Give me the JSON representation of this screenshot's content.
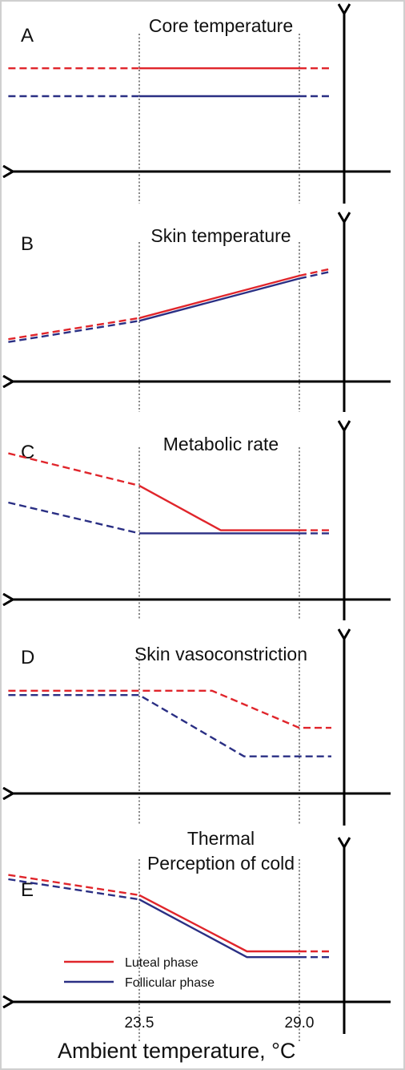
{
  "chart_data": {
    "type": "line",
    "xlabel": "Ambient temperature, °C",
    "x_ticks": [
      23.5,
      29.0
    ],
    "colors": {
      "luteal": "#e0252b",
      "follicular": "#2a2f84"
    },
    "legend": {
      "placement": "bottom-left",
      "items": [
        "Luteal phase",
        "Follicular phase"
      ]
    },
    "note": "Relative (unitless) y values, 0 at the x axis, 1 at the top of the panel.",
    "panels": [
      {
        "letter": "A",
        "title_lines": [
          "Core temperature"
        ],
        "series": [
          {
            "key": "luteal",
            "solid": [
              [
                23.5,
                0.74
              ],
              [
                29.0,
                0.74
              ]
            ],
            "dashed_left": [
              [
                19.0,
                0.74
              ],
              [
                23.5,
                0.74
              ]
            ],
            "dashed_right": [
              [
                29.0,
                0.74
              ],
              [
                30.1,
                0.74
              ]
            ]
          },
          {
            "key": "follicular",
            "solid": [
              [
                23.5,
                0.54
              ],
              [
                29.0,
                0.54
              ]
            ],
            "dashed_left": [
              [
                19.0,
                0.54
              ],
              [
                23.5,
                0.54
              ]
            ],
            "dashed_right": [
              [
                29.0,
                0.54
              ],
              [
                30.1,
                0.54
              ]
            ]
          }
        ]
      },
      {
        "letter": "B",
        "title_lines": [
          "Skin temperature"
        ],
        "series": [
          {
            "key": "luteal",
            "solid": [
              [
                23.5,
                0.45
              ],
              [
                29.0,
                0.75
              ]
            ],
            "dashed_left": [
              [
                19.0,
                0.3
              ],
              [
                23.5,
                0.45
              ]
            ],
            "dashed_right": [
              [
                29.0,
                0.75
              ],
              [
                30.1,
                0.8
              ]
            ]
          },
          {
            "key": "follicular",
            "solid": [
              [
                23.5,
                0.43
              ],
              [
                29.0,
                0.73
              ]
            ],
            "dashed_left": [
              [
                19.0,
                0.28
              ],
              [
                23.5,
                0.43
              ]
            ],
            "dashed_right": [
              [
                29.0,
                0.73
              ],
              [
                30.1,
                0.78
              ]
            ]
          }
        ]
      },
      {
        "letter": "C",
        "title_lines": [
          "Metabolic rate"
        ],
        "series": [
          {
            "key": "luteal",
            "solid": [
              [
                23.5,
                0.74
              ],
              [
                26.3,
                0.45
              ],
              [
                29.0,
                0.45
              ]
            ],
            "dashed_left": [
              [
                19.0,
                0.95
              ],
              [
                23.5,
                0.74
              ]
            ],
            "dashed_right": [
              [
                29.0,
                0.45
              ],
              [
                30.1,
                0.45
              ]
            ]
          },
          {
            "key": "follicular",
            "solid": [
              [
                23.5,
                0.43
              ],
              [
                29.0,
                0.43
              ]
            ],
            "dashed_left": [
              [
                19.0,
                0.63
              ],
              [
                23.5,
                0.43
              ]
            ],
            "dashed_right": [
              [
                29.0,
                0.43
              ],
              [
                30.1,
                0.43
              ]
            ]
          }
        ]
      },
      {
        "letter": "D",
        "title_lines": [
          "Skin vasoconstriction"
        ],
        "series": [
          {
            "key": "luteal",
            "dashed": [
              [
                19.0,
                0.72
              ],
              [
                26.0,
                0.72
              ],
              [
                29.0,
                0.46
              ],
              [
                30.1,
                0.46
              ]
            ]
          },
          {
            "key": "follicular",
            "dashed": [
              [
                19.0,
                0.69
              ],
              [
                23.5,
                0.69
              ],
              [
                27.1,
                0.26
              ],
              [
                30.1,
                0.26
              ]
            ]
          }
        ]
      },
      {
        "letter": "E",
        "title_lines": [
          "Thermal",
          "Perception of cold"
        ],
        "series": [
          {
            "key": "luteal",
            "solid": [
              [
                23.5,
                0.74
              ],
              [
                27.2,
                0.35
              ],
              [
                29.0,
                0.35
              ]
            ],
            "dashed_left": [
              [
                19.0,
                0.88
              ],
              [
                23.5,
                0.74
              ]
            ],
            "dashed_right": [
              [
                29.0,
                0.35
              ],
              [
                30.1,
                0.35
              ]
            ]
          },
          {
            "key": "follicular",
            "solid": [
              [
                23.5,
                0.71
              ],
              [
                27.2,
                0.31
              ],
              [
                29.0,
                0.31
              ]
            ],
            "dashed_left": [
              [
                19.0,
                0.85
              ],
              [
                23.5,
                0.71
              ]
            ],
            "dashed_right": [
              [
                29.0,
                0.31
              ],
              [
                30.1,
                0.31
              ]
            ]
          }
        ]
      }
    ]
  }
}
